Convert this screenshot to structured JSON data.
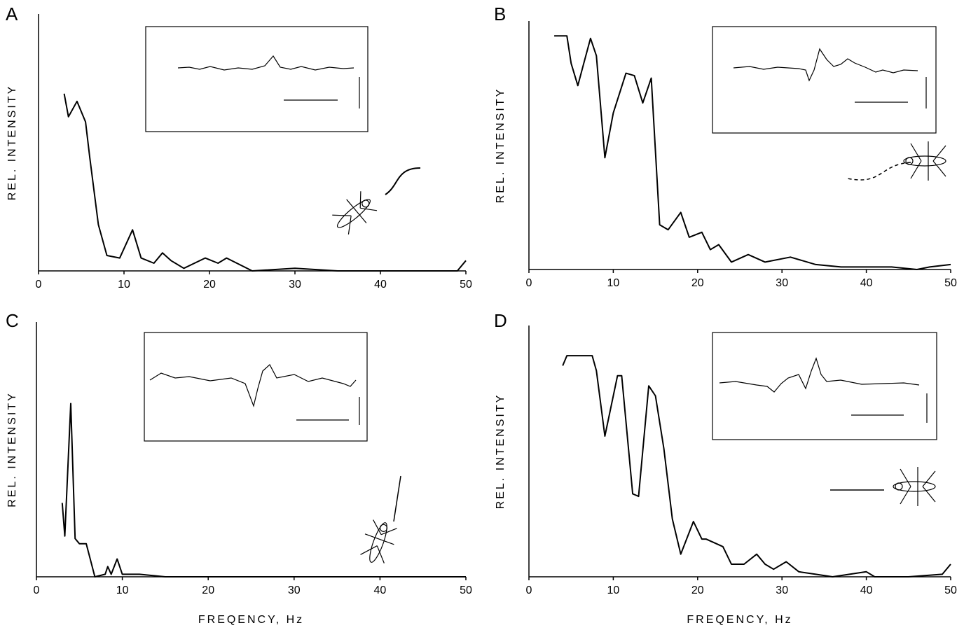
{
  "chart_data": [
    {
      "type": "line",
      "panel": "A",
      "ylabel": "REL. INTENSITY",
      "color": "#000000",
      "xlim": [
        0,
        50
      ],
      "ylim": [
        0,
        1
      ],
      "xticks": [
        0,
        10,
        20,
        30,
        40,
        50
      ],
      "x": [
        3,
        3.5,
        4.5,
        5.5,
        6,
        7,
        8,
        9.5,
        11,
        12,
        13.5,
        14.5,
        15.5,
        17,
        19.5,
        21,
        22,
        25,
        30,
        35,
        40,
        45,
        49,
        50
      ],
      "values": [
        0.69,
        0.6,
        0.66,
        0.58,
        0.44,
        0.18,
        0.06,
        0.05,
        0.16,
        0.05,
        0.03,
        0.07,
        0.04,
        0.01,
        0.05,
        0.03,
        0.05,
        0,
        0.01,
        0,
        0,
        0,
        0,
        0.04
      ]
    },
    {
      "type": "line",
      "panel": "B",
      "ylabel": "REL. INTENSITY",
      "color": "#000000",
      "xlim": [
        0,
        50
      ],
      "ylim": [
        0,
        1
      ],
      "xticks": [
        0,
        10,
        20,
        30,
        40,
        50
      ],
      "x": [
        3,
        4.5,
        5,
        5.8,
        6.5,
        7.3,
        8,
        9,
        10,
        11.5,
        12.5,
        13.5,
        14.5,
        15.5,
        16.5,
        18,
        19,
        20.5,
        21.5,
        22.5,
        24,
        26,
        28,
        31,
        34,
        37,
        40,
        43,
        46,
        47.5,
        50
      ],
      "values": [
        0.94,
        0.94,
        0.83,
        0.74,
        0.83,
        0.93,
        0.86,
        0.45,
        0.63,
        0.79,
        0.78,
        0.67,
        0.77,
        0.18,
        0.16,
        0.23,
        0.13,
        0.15,
        0.08,
        0.1,
        0.03,
        0.06,
        0.03,
        0.05,
        0.02,
        0.01,
        0.01,
        0.01,
        0,
        0.01,
        0.02
      ]
    },
    {
      "type": "line",
      "panel": "C",
      "ylabel": "REL. INTENSITY",
      "xlabel": "FREQENCY, Hz",
      "color": "#000000",
      "xlim": [
        0,
        50
      ],
      "ylim": [
        0,
        1
      ],
      "xticks": [
        0,
        10,
        20,
        30,
        40,
        50
      ],
      "x": [
        3,
        3.3,
        4,
        4.5,
        5,
        5.8,
        6.8,
        8,
        8.3,
        8.7,
        9.4,
        10,
        12,
        15,
        20,
        25,
        50
      ],
      "values": [
        0.29,
        0.16,
        0.68,
        0.15,
        0.13,
        0.13,
        0,
        0.01,
        0.04,
        0.01,
        0.07,
        0.01,
        0.01,
        0,
        0,
        0,
        0
      ]
    },
    {
      "type": "line",
      "panel": "D",
      "ylabel": "REL. INTENSITY",
      "xlabel": "FREQENCY, Hz",
      "color": "#000000",
      "xlim": [
        0,
        50
      ],
      "ylim": [
        0,
        1
      ],
      "xticks": [
        0,
        10,
        20,
        30,
        40,
        50
      ],
      "x": [
        4,
        4.5,
        7.5,
        8,
        9,
        10.5,
        11,
        12.3,
        13,
        14.2,
        15,
        16,
        17,
        18,
        19.5,
        20.5,
        21,
        23,
        24,
        25.5,
        27,
        28,
        29,
        30.5,
        32,
        34,
        36,
        38,
        40,
        41,
        45,
        49,
        50
      ],
      "values": [
        0.84,
        0.88,
        0.88,
        0.82,
        0.56,
        0.8,
        0.8,
        0.33,
        0.32,
        0.76,
        0.72,
        0.51,
        0.23,
        0.09,
        0.22,
        0.15,
        0.15,
        0.12,
        0.05,
        0.05,
        0.09,
        0.05,
        0.03,
        0.06,
        0.02,
        0.01,
        0,
        0.01,
        0.02,
        0,
        0,
        0.01,
        0.05
      ]
    }
  ]
}
